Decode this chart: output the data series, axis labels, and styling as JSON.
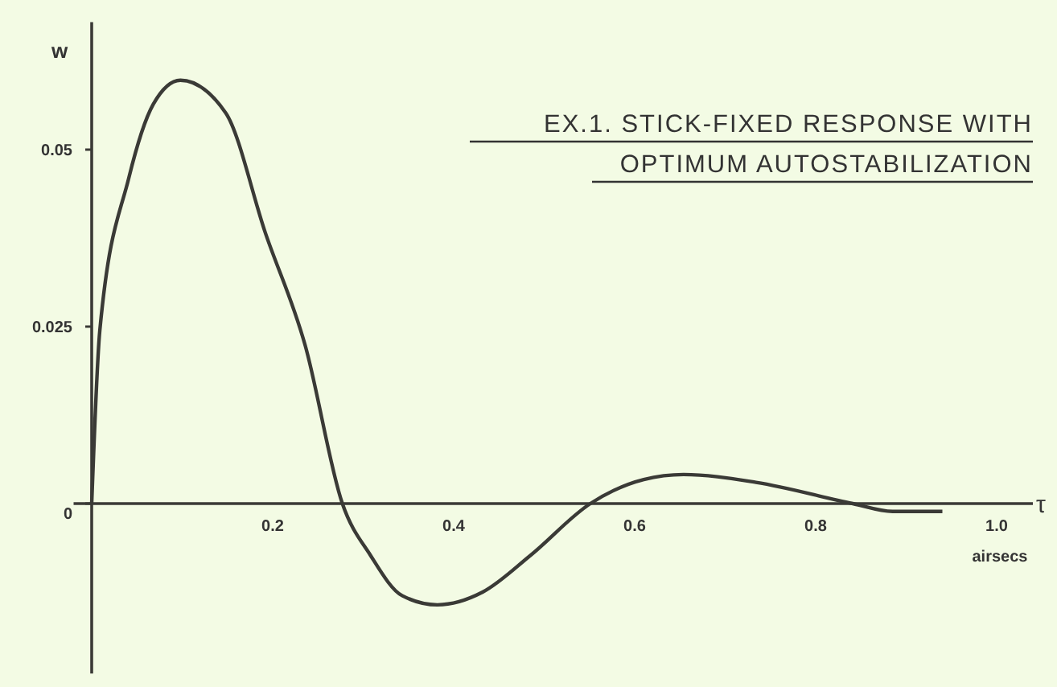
{
  "chart_data": {
    "type": "line",
    "title": "EX.1. STICK-FIXED RESPONSE WITH",
    "subtitle": "OPTIMUM AUTOSTABILIZATION",
    "xlabel": "τ",
    "ylabel": "w",
    "annotations": [
      "airsecs"
    ],
    "x": [
      0,
      0.009,
      0.041,
      0.068,
      0.098,
      0.148,
      0.192,
      0.236,
      0.277,
      0.308,
      0.343,
      0.382,
      0.432,
      0.485,
      0.551,
      0.61,
      0.654,
      0.734,
      0.841,
      0.885,
      0.94
    ],
    "series": [
      {
        "color": "#3a3a36",
        "values": [
          0,
          0.0245,
          0.046,
          0.0564,
          0.0598,
          0.0552,
          0.0382,
          0.0223,
          0,
          -0.0073,
          -0.013,
          -0.0143,
          -0.0125,
          -0.0073,
          0,
          0.0034,
          0.0041,
          0.003,
          0,
          -0.0011,
          -0.0011
        ]
      }
    ],
    "xlim": [
      -0.02,
      1.04
    ],
    "ylim": [
      -0.024,
      0.068
    ],
    "xticks": [
      0.2,
      0.4,
      0.6,
      0.8,
      {
        "value": 1.0,
        "label": "1.0"
      }
    ],
    "yticks": [
      0,
      0.025,
      0.05
    ],
    "grid": false,
    "marker": "none",
    "line_style": "solid"
  }
}
